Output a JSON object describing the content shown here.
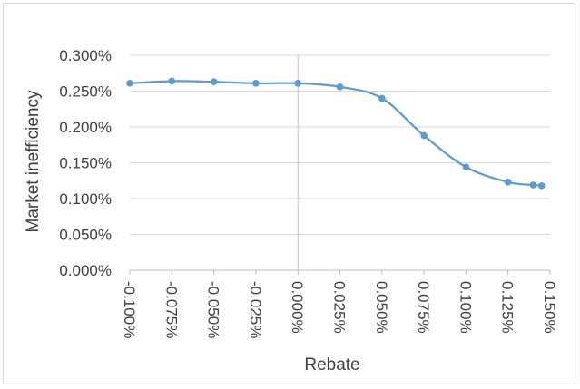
{
  "chart_data": {
    "type": "line",
    "title": "",
    "xlabel": "Rebate",
    "ylabel": "Market inefficiency",
    "x_ticks": [
      "-0.100%",
      "-0.075%",
      "-0.050%",
      "-0.025%",
      "0.000%",
      "0.025%",
      "0.050%",
      "0.075%",
      "0.100%",
      "0.125%",
      "0.150%"
    ],
    "y_ticks": [
      "0.000%",
      "0.050%",
      "0.100%",
      "0.150%",
      "0.200%",
      "0.250%",
      "0.300%"
    ],
    "xlim": [
      -0.1,
      0.15
    ],
    "ylim": [
      0.0,
      0.3
    ],
    "grid": "horizontal",
    "legend": "none",
    "series": [
      {
        "color": "#5b9bd5",
        "points": [
          {
            "x": -0.1,
            "y": 0.261
          },
          {
            "x": -0.075,
            "y": 0.264
          },
          {
            "x": -0.05,
            "y": 0.263
          },
          {
            "x": -0.025,
            "y": 0.261
          },
          {
            "x": 0.0,
            "y": 0.261
          },
          {
            "x": 0.025,
            "y": 0.256
          },
          {
            "x": 0.05,
            "y": 0.24
          },
          {
            "x": 0.075,
            "y": 0.188
          },
          {
            "x": 0.1,
            "y": 0.144
          },
          {
            "x": 0.125,
            "y": 0.123
          },
          {
            "x": 0.14,
            "y": 0.119
          },
          {
            "x": 0.145,
            "y": 0.118
          }
        ]
      }
    ]
  }
}
